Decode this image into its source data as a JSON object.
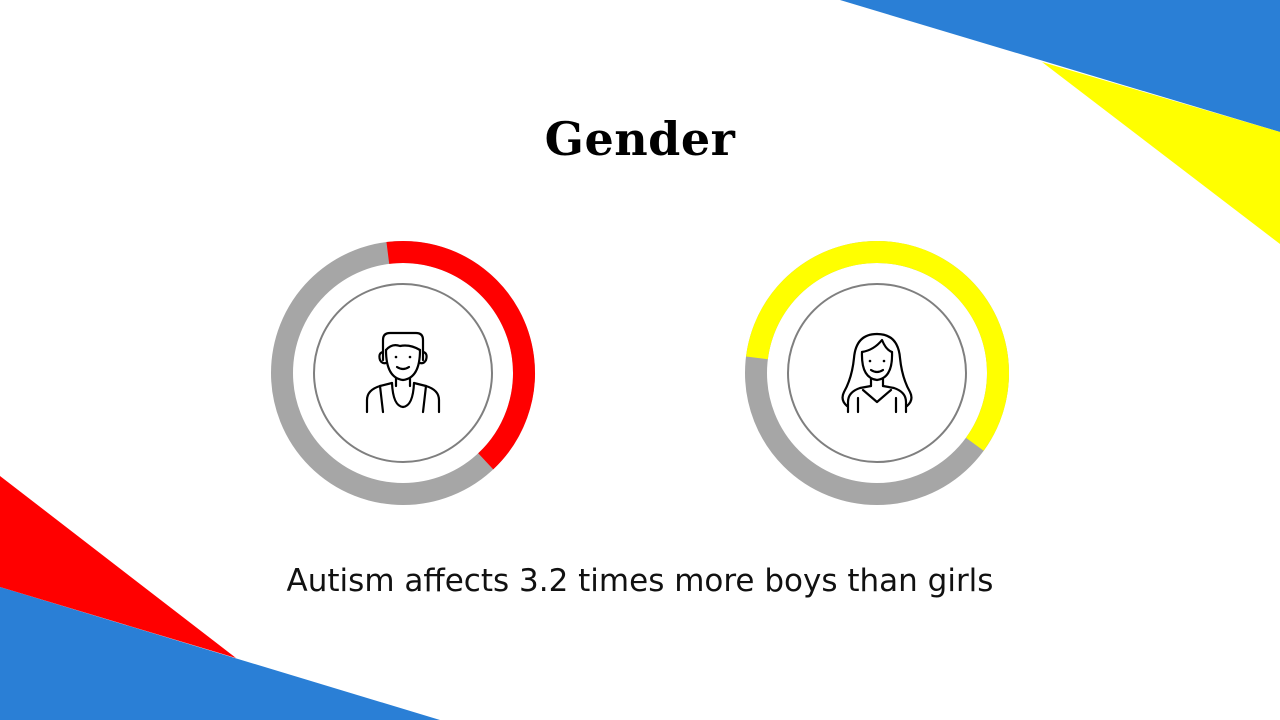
{
  "slide": {
    "title": "Gender",
    "caption": "Autism affects 3.2 times more boys than girls"
  },
  "colors": {
    "blue": "#2a7fd6",
    "yellow": "#ffff00",
    "red": "#ff0000",
    "track": "#a6a6a6",
    "inner_ring": "#7f7f7f"
  },
  "gauges": [
    {
      "label_icon": "male-person-icon",
      "accent": "#ff0000",
      "fraction": 0.4,
      "start_fraction": 0.98
    },
    {
      "label_icon": "female-person-icon",
      "accent": "#ffff00",
      "fraction": 0.58,
      "start_fraction": 0.77
    }
  ]
}
